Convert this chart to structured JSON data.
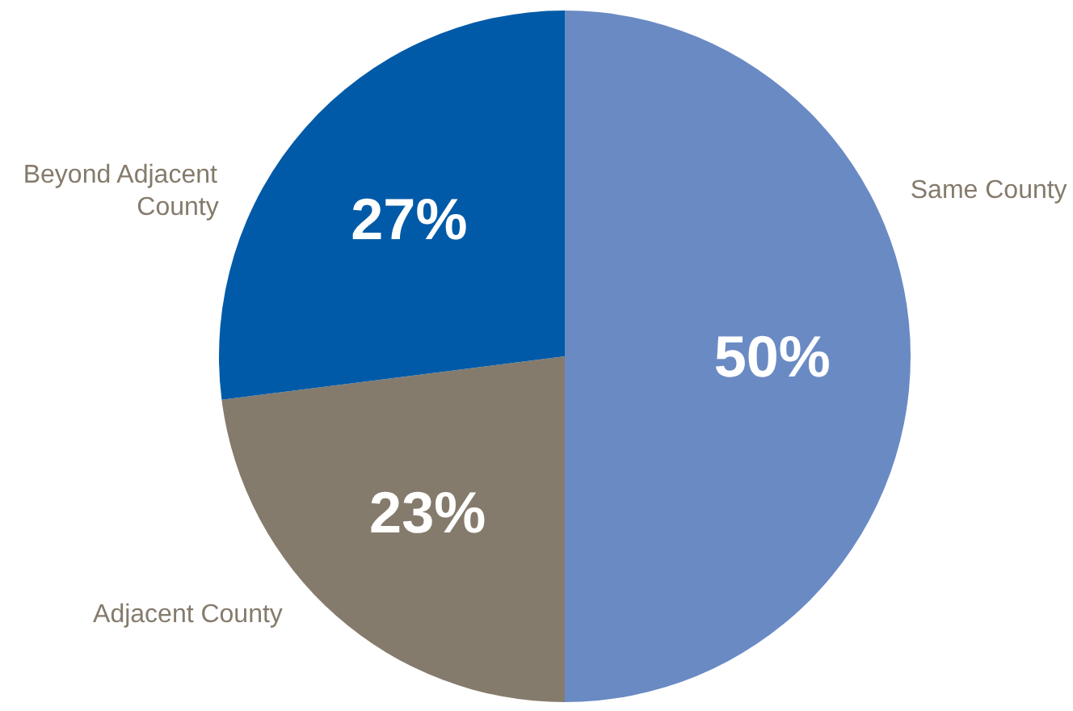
{
  "chart_data": {
    "type": "pie",
    "categories": [
      "Same County",
      "Adjacent County",
      "Beyond Adjacent County"
    ],
    "values": [
      50,
      23,
      27
    ],
    "colors": [
      "#6a8ac4",
      "#857b6c",
      "#005aa7"
    ],
    "value_labels": [
      "50%",
      "23%",
      "27%"
    ]
  }
}
